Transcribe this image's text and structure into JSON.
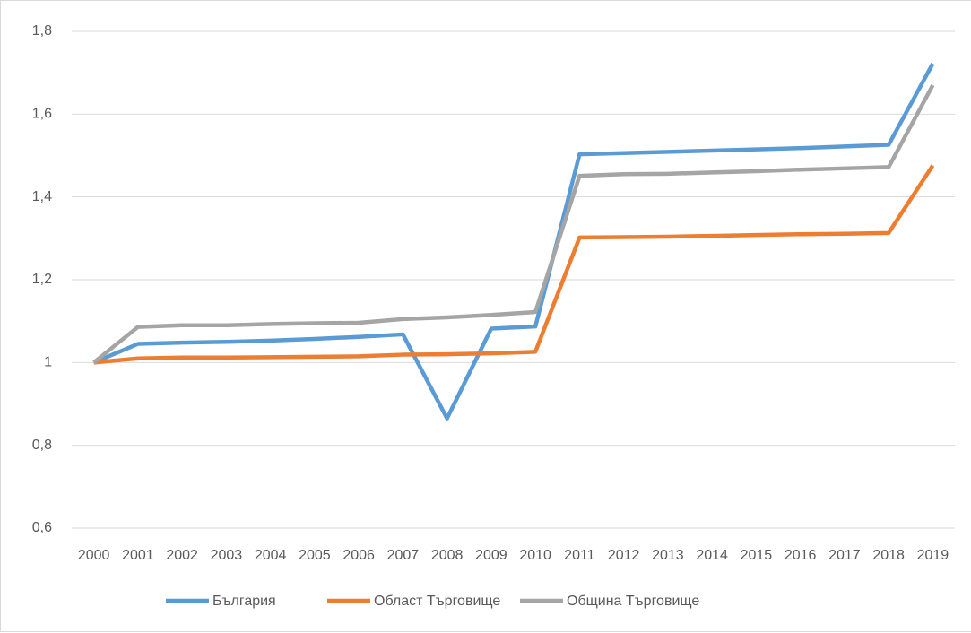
{
  "chart_data": {
    "type": "line",
    "categories": [
      "2000",
      "2001",
      "2002",
      "2003",
      "2004",
      "2005",
      "2006",
      "2007",
      "2008",
      "2009",
      "2010",
      "2011",
      "2012",
      "2013",
      "2014",
      "2015",
      "2016",
      "2017",
      "2018",
      "2019"
    ],
    "series": [
      {
        "name": "България",
        "color": "#5b9bd5",
        "values": [
          1.0,
          1.045,
          1.048,
          1.05,
          1.053,
          1.057,
          1.062,
          1.068,
          0.865,
          1.082,
          1.087,
          1.503,
          1.506,
          1.509,
          1.512,
          1.515,
          1.518,
          1.522,
          1.526,
          1.722
        ]
      },
      {
        "name": "Област Търговище",
        "color": "#ed7d31",
        "values": [
          1.0,
          1.01,
          1.012,
          1.012,
          1.013,
          1.014,
          1.015,
          1.019,
          1.02,
          1.022,
          1.026,
          1.302,
          1.303,
          1.304,
          1.306,
          1.308,
          1.31,
          1.311,
          1.313,
          1.476
        ]
      },
      {
        "name": "Община Търговище",
        "color": "#a5a5a5",
        "values": [
          1.0,
          1.086,
          1.09,
          1.09,
          1.093,
          1.095,
          1.096,
          1.105,
          1.109,
          1.115,
          1.122,
          1.451,
          1.455,
          1.456,
          1.459,
          1.462,
          1.466,
          1.469,
          1.472,
          1.67
        ]
      }
    ],
    "ylim": [
      0.6,
      1.8
    ],
    "yticks": [
      {
        "value": 0.6,
        "label": "0,6"
      },
      {
        "value": 0.8,
        "label": "0,8"
      },
      1,
      {
        "value": 1.2,
        "label": "1,2"
      },
      {
        "value": 1.4,
        "label": "1,4"
      },
      {
        "value": 1.6,
        "label": "1,6"
      },
      {
        "value": 1.8,
        "label": "1,8"
      }
    ],
    "grid": true,
    "legend": "bottom"
  }
}
